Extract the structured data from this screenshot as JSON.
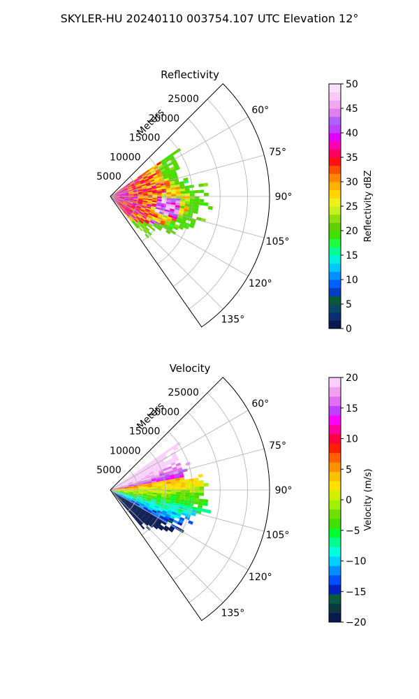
{
  "figure": {
    "suptitle": "SKYLER-HU  20240110  003754.107 UTC Elevation 12°"
  },
  "chart_data": [
    {
      "type": "heatmap",
      "title": "Reflectivity",
      "radial_label": "Meters",
      "radial_ticks": [
        "5000",
        "10000",
        "15000",
        "20000",
        "25000"
      ],
      "radial_tick_values": [
        5000,
        10000,
        15000,
        20000,
        25000
      ],
      "rmax": 29000,
      "theta_ticks": [
        "60°",
        "75°",
        "90°",
        "105°",
        "120°",
        "135°"
      ],
      "theta_tick_values": [
        60,
        75,
        90,
        105,
        120,
        135
      ],
      "theta_range": [
        45,
        145
      ],
      "data_azimuth_range": [
        55,
        140
      ],
      "colorbar": {
        "label": "Reflectivity dBZ",
        "ticks": [
          "0",
          "5",
          "10",
          "15",
          "20",
          "25",
          "30",
          "35",
          "40",
          "45",
          "50"
        ],
        "tick_values": [
          0,
          5,
          10,
          15,
          20,
          25,
          30,
          35,
          40,
          45,
          50
        ],
        "range": [
          0,
          50
        ]
      },
      "grid": true
    },
    {
      "type": "heatmap",
      "title": "Velocity",
      "radial_label": "Meters",
      "radial_ticks": [
        "5000",
        "10000",
        "15000",
        "20000",
        "25000"
      ],
      "radial_tick_values": [
        5000,
        10000,
        15000,
        20000,
        25000
      ],
      "rmax": 29000,
      "theta_ticks": [
        "60°",
        "75°",
        "90°",
        "105°",
        "120°",
        "135°"
      ],
      "theta_tick_values": [
        60,
        75,
        90,
        105,
        120,
        135
      ],
      "theta_range": [
        45,
        145
      ],
      "data_azimuth_range": [
        55,
        140
      ],
      "colorbar": {
        "label": "Velocity (m/s)",
        "ticks": [
          "−20",
          "−15",
          "−10",
          "−5",
          "0",
          "5",
          "10",
          "15",
          "20"
        ],
        "tick_values": [
          -20,
          -15,
          -10,
          -5,
          0,
          5,
          10,
          15,
          20
        ],
        "range": [
          -20,
          20
        ]
      },
      "grid": true
    }
  ],
  "colors": {
    "reflectivity_scale": [
      "#0a1a50",
      "#083070",
      "#0b4860",
      "#0a5a3a",
      "#0040c0",
      "#0060ff",
      "#0090ff",
      "#00c8ff",
      "#00f0e0",
      "#00ff90",
      "#20ff40",
      "#40e000",
      "#60d000",
      "#90e010",
      "#c8f020",
      "#f0f020",
      "#ffd700",
      "#ffb000",
      "#ff8800",
      "#ff5000",
      "#ff1010",
      "#ff0060",
      "#ff00b0",
      "#e000ff",
      "#c040ff",
      "#b060ff",
      "#e080f0",
      "#f0a8f0",
      "#f8c8f8",
      "#fbe0fb"
    ],
    "velocity_scale": [
      "#081a50",
      "#0a3a40",
      "#0a5a40",
      "#0020c0",
      "#0050ff",
      "#0090ff",
      "#00d0ff",
      "#00ffe0",
      "#00ff90",
      "#00ff30",
      "#40e000",
      "#70e000",
      "#a0f000",
      "#d0f000",
      "#ffe000",
      "#ffc000",
      "#ff9000",
      "#ff6000",
      "#ff2000",
      "#ff0040",
      "#ff00a0",
      "#ff00ff",
      "#c040ff",
      "#e070f0",
      "#f0a0f0",
      "#f8d0f8"
    ]
  }
}
